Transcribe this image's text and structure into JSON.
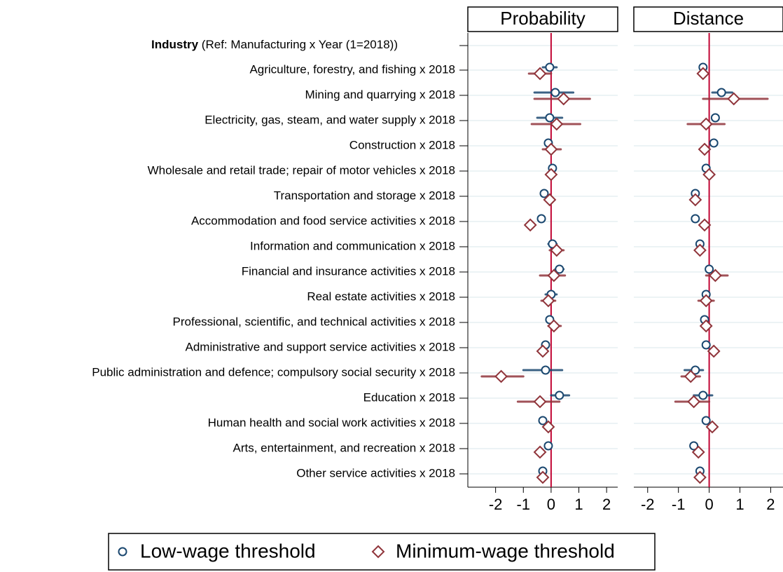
{
  "chart_data": {
    "type": "coefplot",
    "header_bold": "Industry",
    "header_rest": "(Ref: Manufacturing x Year (1=2018))",
    "categories": [
      "Agriculture, forestry, and fishing x 2018",
      "Mining and quarrying x 2018",
      "Electricity, gas, steam, and water supply x 2018",
      "Construction x 2018",
      "Wholesale and retail trade; repair of motor vehicles x 2018",
      "Transportation and storage x 2018",
      "Accommodation and food service activities x 2018",
      "Information and communication x 2018",
      "Financial and insurance activities x 2018",
      "Real estate activities x 2018",
      "Professional, scientific, and technical activities x 2018",
      "Administrative and support service activities x 2018",
      "Public administration and defence; compulsory social security x 2018",
      "Education x 2018",
      "Human health and social work activities x 2018",
      "Arts, entertainment, and recreation x 2018",
      "Other service activities x 2018"
    ],
    "series": [
      {
        "name": "Low-wage threshold",
        "color": "#1a476f",
        "marker": "circle"
      },
      {
        "name": "Minimum-wage threshold",
        "color": "#90353b",
        "marker": "diamond"
      }
    ],
    "xline": 0,
    "xline_color": "#c10534",
    "grid": true,
    "panels": [
      {
        "title": "Probability",
        "xlim": [
          -3,
          2.4
        ],
        "xticks": [
          -2,
          -1,
          0,
          1,
          2
        ],
        "series": [
          {
            "values": [
              -0.05,
              0.15,
              -0.05,
              -0.1,
              0.05,
              -0.25,
              -0.35,
              0.05,
              0.3,
              0,
              -0.05,
              -0.2,
              -0.2,
              0.3,
              -0.3,
              -0.1,
              -0.3
            ],
            "lower": [
              -0.3,
              -0.6,
              -0.5,
              -0.2,
              -0.05,
              -0.35,
              -0.42,
              -0.1,
              0.15,
              -0.2,
              -0.15,
              -0.3,
              -1.0,
              0,
              -0.4,
              -0.15,
              -0.4
            ],
            "upper": [
              0.2,
              0.8,
              0.4,
              0,
              0.15,
              -0.15,
              -0.28,
              0.2,
              0.45,
              0.2,
              0.05,
              -0.1,
              0.4,
              0.65,
              -0.2,
              -0.05,
              -0.2
            ]
          },
          {
            "values": [
              -0.4,
              0.45,
              0.2,
              0,
              0,
              -0.05,
              -0.75,
              0.2,
              0.1,
              -0.1,
              0.1,
              -0.3,
              -1.8,
              -0.4,
              -0.1,
              -0.4,
              -0.3
            ],
            "lower": [
              -0.8,
              -0.6,
              -0.7,
              -0.3,
              -0.1,
              -0.15,
              -0.82,
              -0.05,
              -0.4,
              -0.35,
              -0.1,
              -0.45,
              -2.5,
              -1.2,
              -0.25,
              -0.5,
              -0.4
            ],
            "upper": [
              0,
              1.4,
              1.05,
              0.35,
              0.1,
              0.1,
              -0.68,
              0.45,
              0.5,
              0.15,
              0.35,
              -0.15,
              -1.0,
              0.3,
              0.05,
              -0.3,
              -0.2
            ]
          }
        ]
      },
      {
        "title": "Distance",
        "xlim": [
          -2.45,
          2.4
        ],
        "xticks": [
          -2,
          -1,
          0,
          1,
          2
        ],
        "series": [
          {
            "values": [
              -0.2,
              0.4,
              0.2,
              0.15,
              -0.1,
              -0.45,
              -0.45,
              -0.3,
              0,
              -0.1,
              -0.15,
              -0.1,
              -0.45,
              -0.2,
              -0.1,
              -0.5,
              -0.3
            ],
            "lower": [
              -0.25,
              0.1,
              0.1,
              0.1,
              -0.15,
              -0.5,
              -0.5,
              -0.4,
              -0.1,
              -0.2,
              -0.2,
              -0.15,
              -0.8,
              -0.5,
              -0.15,
              -0.55,
              -0.35
            ],
            "upper": [
              -0.15,
              0.75,
              0.3,
              0.2,
              -0.05,
              -0.4,
              -0.4,
              -0.2,
              0.1,
              0,
              -0.1,
              -0.05,
              -0.2,
              0.1,
              -0.05,
              -0.45,
              -0.25
            ]
          },
          {
            "values": [
              -0.2,
              0.8,
              -0.1,
              -0.15,
              0,
              -0.45,
              -0.15,
              -0.3,
              0.2,
              -0.1,
              -0.1,
              0.15,
              -0.6,
              -0.5,
              0.1,
              -0.35,
              -0.3
            ],
            "lower": [
              -0.3,
              -0.2,
              -0.7,
              -0.25,
              -0.05,
              -0.5,
              -0.2,
              -0.4,
              -0.1,
              -0.35,
              -0.2,
              0.1,
              -0.9,
              -1.1,
              0.05,
              -0.4,
              -0.35
            ],
            "upper": [
              -0.1,
              1.9,
              0.5,
              -0.05,
              0.05,
              -0.4,
              -0.1,
              -0.2,
              0.6,
              0.15,
              0,
              0.2,
              -0.3,
              0,
              0.15,
              -0.3,
              -0.25
            ]
          }
        ]
      }
    ]
  }
}
